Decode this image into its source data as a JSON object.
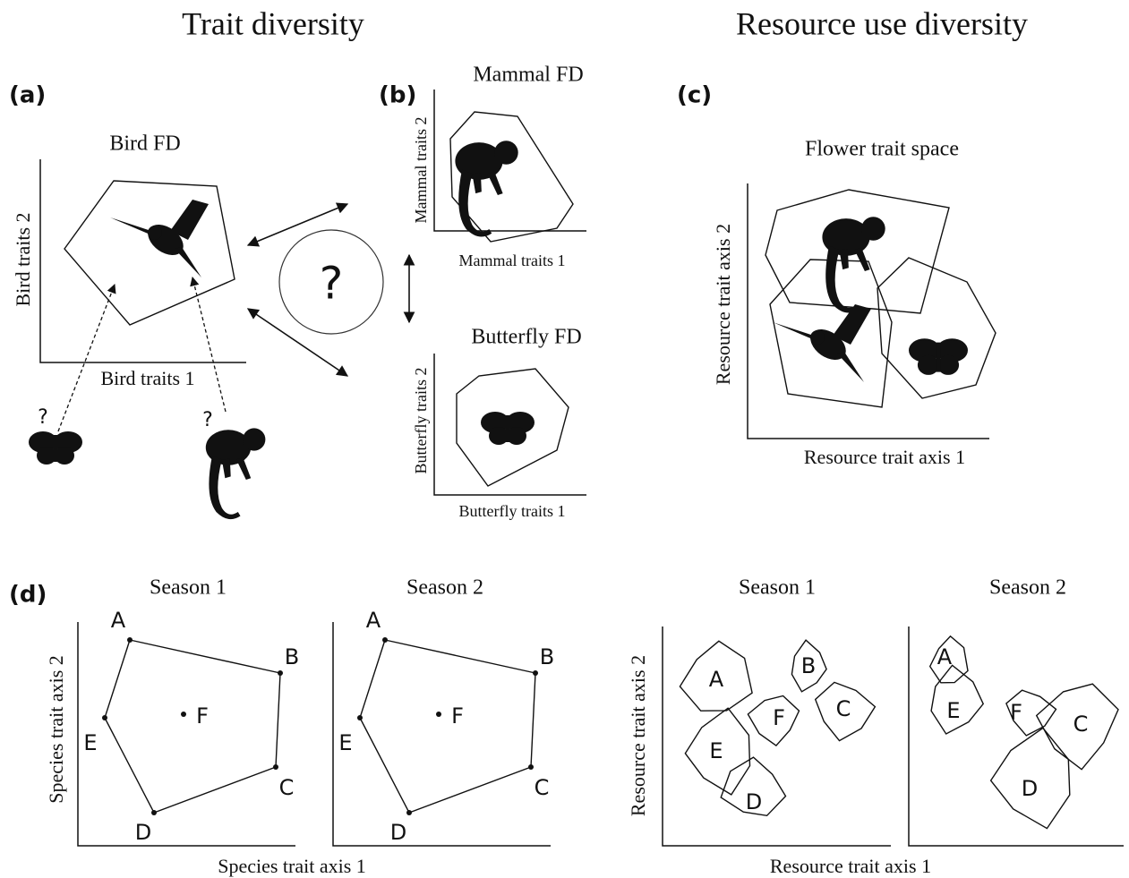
{
  "header": {
    "left_title": "Trait diversity",
    "right_title": "Resource use diversity"
  },
  "panel_a": {
    "label": "(a)",
    "title": "Bird FD",
    "y_axis": "Bird traits 2",
    "x_axis": "Bird traits 1",
    "question_butterfly": "?",
    "question_mammal": "?",
    "center_question": "?"
  },
  "panel_b": {
    "label": "(b)",
    "mammal_title": "Mammal FD",
    "mammal_y_axis": "Mammal traits 2",
    "mammal_x_axis": "Mammal traits 1",
    "butterfly_title": "Butterfly FD",
    "butterfly_y_axis": "Butterfly traits 2",
    "butterfly_x_axis": "Butterfly traits 1"
  },
  "panel_c": {
    "label": "(c)",
    "title": "Flower trait space",
    "y_axis": "Resource trait axis 2",
    "x_axis": "Resource trait axis 1"
  },
  "panel_d": {
    "label": "(d)",
    "trait": {
      "season1_title": "Season 1",
      "season2_title": "Season 2",
      "y_axis": "Species trait axis 2",
      "x_axis": "Species trait axis 1",
      "season1_points": [
        "A",
        "B",
        "C",
        "D",
        "E",
        "F"
      ],
      "season2_points": [
        "A",
        "B",
        "C",
        "D",
        "E",
        "F"
      ]
    },
    "resource": {
      "season1_title": "Season 1",
      "season2_title": "Season 2",
      "y_axis": "Resource trait axis 2",
      "x_axis": "Resource trait axis 1",
      "season1_groups": [
        "A",
        "B",
        "C",
        "F",
        "E",
        "D"
      ],
      "season2_groups": [
        "A",
        "E",
        "F",
        "C",
        "D"
      ]
    }
  }
}
